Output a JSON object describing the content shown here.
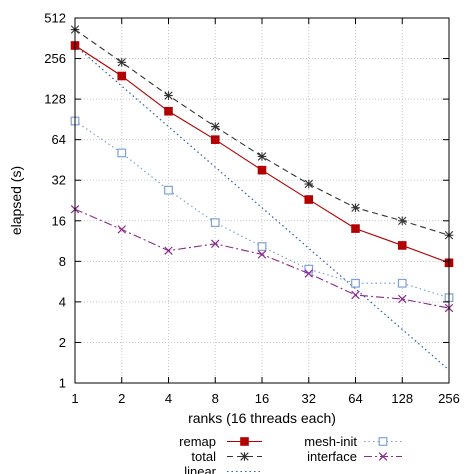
{
  "chart_data": {
    "type": "line",
    "title": "",
    "xlabel": "ranks (16 threads each)",
    "ylabel": "elapsed (s)",
    "x_scale": "log2",
    "y_scale": "log2",
    "x_ticks": [
      1,
      2,
      4,
      8,
      16,
      32,
      64,
      128,
      256
    ],
    "y_ticks": [
      1,
      2,
      4,
      8,
      16,
      32,
      64,
      128,
      256,
      512
    ],
    "xlim": [
      1,
      256
    ],
    "ylim": [
      1,
      512
    ],
    "grid": true,
    "legend_position": "bottom",
    "x": [
      1,
      2,
      4,
      8,
      16,
      32,
      64,
      128,
      256
    ],
    "series": [
      {
        "name": "remap",
        "color": "#b30000",
        "dash": "solid",
        "marker": "filled-square",
        "values": [
          320,
          190,
          104,
          64,
          38,
          23,
          14,
          10.5,
          7.8
        ]
      },
      {
        "name": "total",
        "color": "#333333",
        "dash": "dashed",
        "marker": "asterisk",
        "values": [
          420,
          240,
          136,
          80,
          48,
          30,
          20,
          16,
          12.5
        ]
      },
      {
        "name": "linear",
        "color": "#2b5ea7",
        "dash": "dotted",
        "marker": "none",
        "values": [
          320,
          160,
          80,
          40,
          20,
          10,
          5,
          2.5,
          1.25
        ]
      },
      {
        "name": "mesh-init",
        "color": "#7fa2d6",
        "dash": "dotted",
        "marker": "open-square",
        "values": [
          88,
          51,
          27,
          15.5,
          10.3,
          7,
          5.5,
          5.5,
          4.3
        ]
      },
      {
        "name": "interface",
        "color": "#8a2a8a",
        "dash": "dashdot",
        "marker": "x",
        "values": [
          19.5,
          13.8,
          9.6,
          10.8,
          9,
          6.5,
          4.5,
          4.2,
          3.6
        ]
      }
    ]
  }
}
